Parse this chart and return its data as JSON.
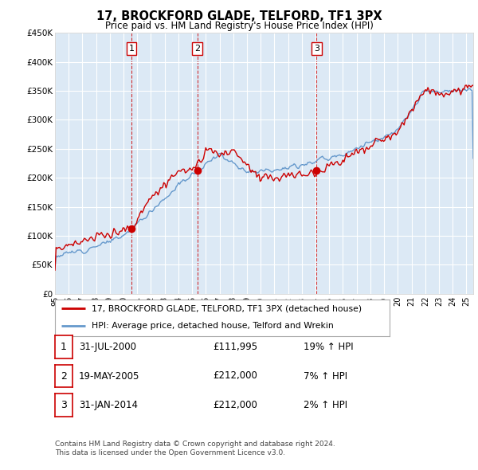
{
  "title": "17, BROCKFORD GLADE, TELFORD, TF1 3PX",
  "subtitle": "Price paid vs. HM Land Registry's House Price Index (HPI)",
  "ylabel_ticks": [
    "£0",
    "£50K",
    "£100K",
    "£150K",
    "£200K",
    "£250K",
    "£300K",
    "£350K",
    "£400K",
    "£450K"
  ],
  "ylim": [
    0,
    450000
  ],
  "xlim_start": 1995.0,
  "xlim_end": 2025.5,
  "sale_dates": [
    2000.58,
    2005.38,
    2014.08
  ],
  "sale_prices": [
    111995,
    212000,
    212000
  ],
  "sale_labels": [
    "1",
    "2",
    "3"
  ],
  "legend_line1": "17, BROCKFORD GLADE, TELFORD, TF1 3PX (detached house)",
  "legend_line2": "HPI: Average price, detached house, Telford and Wrekin",
  "table_rows": [
    [
      "1",
      "31-JUL-2000",
      "£111,995",
      "19% ↑ HPI"
    ],
    [
      "2",
      "19-MAY-2005",
      "£212,000",
      "7% ↑ HPI"
    ],
    [
      "3",
      "31-JAN-2014",
      "£212,000",
      "2% ↑ HPI"
    ]
  ],
  "footnote1": "Contains HM Land Registry data © Crown copyright and database right 2024.",
  "footnote2": "This data is licensed under the Open Government Licence v3.0.",
  "red_color": "#cc0000",
  "blue_color": "#6699cc",
  "grid_color": "#cccccc",
  "background_color": "#ffffff",
  "plot_bg_color": "#dce9f5"
}
